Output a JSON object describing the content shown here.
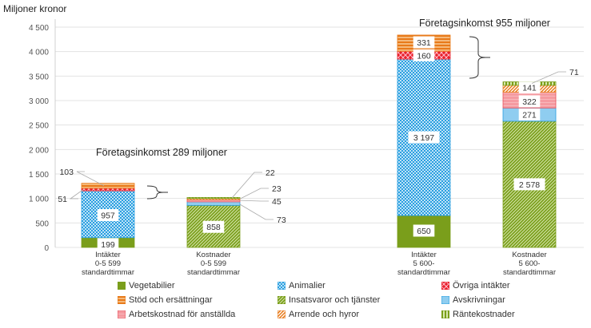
{
  "chart_data": {
    "type": "bar",
    "stacked": true,
    "ylabel": "Miljoner kronor",
    "ylim": [
      0,
      4500
    ],
    "yticks": [
      0,
      500,
      1000,
      1500,
      2000,
      2500,
      3000,
      3500,
      4000,
      4500
    ],
    "ytick_labels": [
      "0",
      "500",
      "1 000",
      "1 500",
      "2 000",
      "2 500",
      "3 000",
      "3 500",
      "4 000",
      "4 500"
    ],
    "grid": true,
    "legend_position": "bottom",
    "categories": [
      [
        "Intäkter",
        "0-5 599",
        "standardtimmar"
      ],
      [
        "Kostnader",
        "0-5 599",
        "standardtimmar"
      ],
      [
        "Intäkter",
        "5 600-",
        "standardtimmar"
      ],
      [
        "Kostnader",
        "5 600-",
        "standardtimmar"
      ]
    ],
    "series": [
      {
        "name": "Vegetabilier",
        "color": "#7a9e1b",
        "pattern": "solid",
        "values": [
          199,
          0,
          650,
          0
        ]
      },
      {
        "name": "Animalier",
        "color": "#2a9fe0",
        "pattern": "checker",
        "values": [
          957,
          0,
          3197,
          0
        ]
      },
      {
        "name": "Övriga intäkter",
        "color": "#e8202a",
        "pattern": "cross",
        "values": [
          51,
          0,
          160,
          0
        ]
      },
      {
        "name": "Stöd och ersättningar",
        "color": "#e87a1a",
        "pattern": "hstripe",
        "values": [
          103,
          0,
          331,
          0
        ]
      },
      {
        "name": "Insatsvaror och tjänster",
        "color": "#7a9e1b",
        "pattern": "diag",
        "values": [
          0,
          858,
          0,
          2578
        ]
      },
      {
        "name": "Avskrivningar",
        "color": "#2a9fe0",
        "pattern": "lightsolid",
        "values": [
          0,
          73,
          0,
          271
        ]
      },
      {
        "name": "Arbetskostnad för anställda",
        "color": "#e8505a",
        "pattern": "pinkstripe",
        "values": [
          0,
          45,
          0,
          322
        ]
      },
      {
        "name": "Arrende och hyror",
        "color": "#e87a1a",
        "pattern": "diag2",
        "values": [
          0,
          23,
          0,
          141
        ]
      },
      {
        "name": "Räntekostnader",
        "color": "#7a9e1b",
        "pattern": "vstripe",
        "values": [
          0,
          22,
          0,
          71
        ]
      }
    ],
    "data_labels": [
      [
        "199",
        "957",
        "51",
        "103",
        "",
        "",
        "",
        "",
        ""
      ],
      [
        "",
        "",
        "",
        "",
        "858",
        "73",
        "45",
        "23",
        "22"
      ],
      [
        "650",
        "3 197",
        "160",
        "331",
        "",
        "",
        "",
        "",
        ""
      ],
      [
        "",
        "",
        "",
        "",
        "2 578",
        "271",
        "322",
        "141",
        "71"
      ]
    ],
    "annotations": [
      "Företagsinkomst 289 miljoner",
      "Företagsinkomst 955 miljoner"
    ]
  }
}
